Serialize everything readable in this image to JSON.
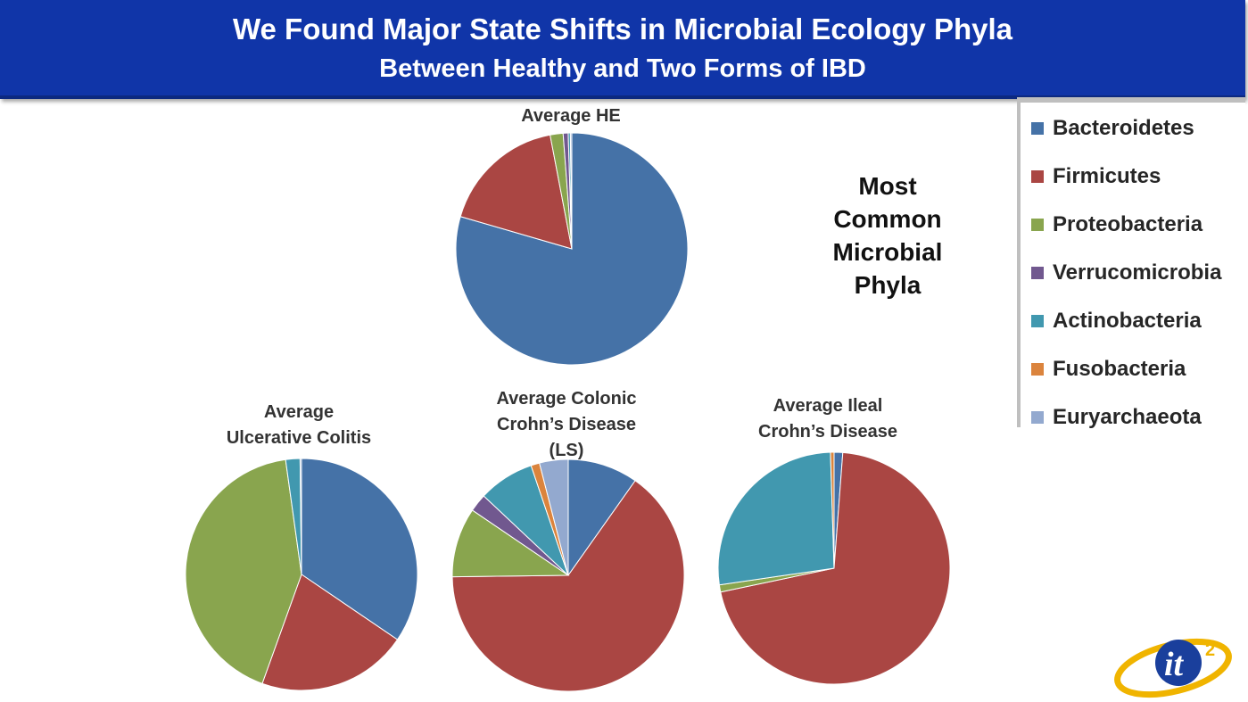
{
  "header": {
    "title_line1": "We Found Major State Shifts in Microbial Ecology Phyla",
    "title_line2": "Between Healthy and Two Forms of IBD",
    "background": "#1035a8"
  },
  "side_label": "Most\nCommon\nMicrobial\nPhyla",
  "chart_data": [
    {
      "type": "pie",
      "title": "Average HE",
      "categories": [
        "Bacteroidetes",
        "Firmicutes",
        "Proteobacteria",
        "Verrucomicrobia",
        "Actinobacteria",
        "Fusobacteria",
        "Euryarchaeota"
      ],
      "values": [
        79.5,
        17.5,
        1.8,
        0.7,
        0.3,
        0.0,
        0.2
      ]
    },
    {
      "type": "pie",
      "title": "Average\nUlcerative Colitis",
      "categories": [
        "Bacteroidetes",
        "Firmicutes",
        "Proteobacteria",
        "Verrucomicrobia",
        "Actinobacteria",
        "Fusobacteria",
        "Euryarchaeota"
      ],
      "values": [
        34.5,
        21.0,
        42.3,
        0.0,
        2.0,
        0.0,
        0.2
      ]
    },
    {
      "type": "pie",
      "title": "Average Colonic\nCrohn’s Disease\n(LS)",
      "categories": [
        "Bacteroidetes",
        "Firmicutes",
        "Proteobacteria",
        "Verrucomicrobia",
        "Actinobacteria",
        "Fusobacteria",
        "Euryarchaeota"
      ],
      "values": [
        9.8,
        65.0,
        9.7,
        2.5,
        7.8,
        1.2,
        4.0
      ]
    },
    {
      "type": "pie",
      "title": "Average Ileal\nCrohn’s Disease",
      "categories": [
        "Bacteroidetes",
        "Firmicutes",
        "Proteobacteria",
        "Verrucomicrobia",
        "Actinobacteria",
        "Fusobacteria",
        "Euryarchaeota"
      ],
      "values": [
        1.2,
        70.5,
        1.0,
        0.0,
        26.8,
        0.5,
        0.0
      ]
    }
  ],
  "legend": [
    {
      "label": "Bacteroidetes",
      "color": "#4572a7"
    },
    {
      "label": "Firmicutes",
      "color": "#aa4643"
    },
    {
      "label": "Proteobacteria",
      "color": "#89a54e"
    },
    {
      "label": "Verrucomicrobia",
      "color": "#71588f"
    },
    {
      "label": "Actinobacteria",
      "color": "#4198af"
    },
    {
      "label": "Fusobacteria",
      "color": "#db843d"
    },
    {
      "label": "Euryarchaeota",
      "color": "#93a9cf"
    }
  ],
  "logo": {
    "text": "it",
    "superscript": "2"
  }
}
